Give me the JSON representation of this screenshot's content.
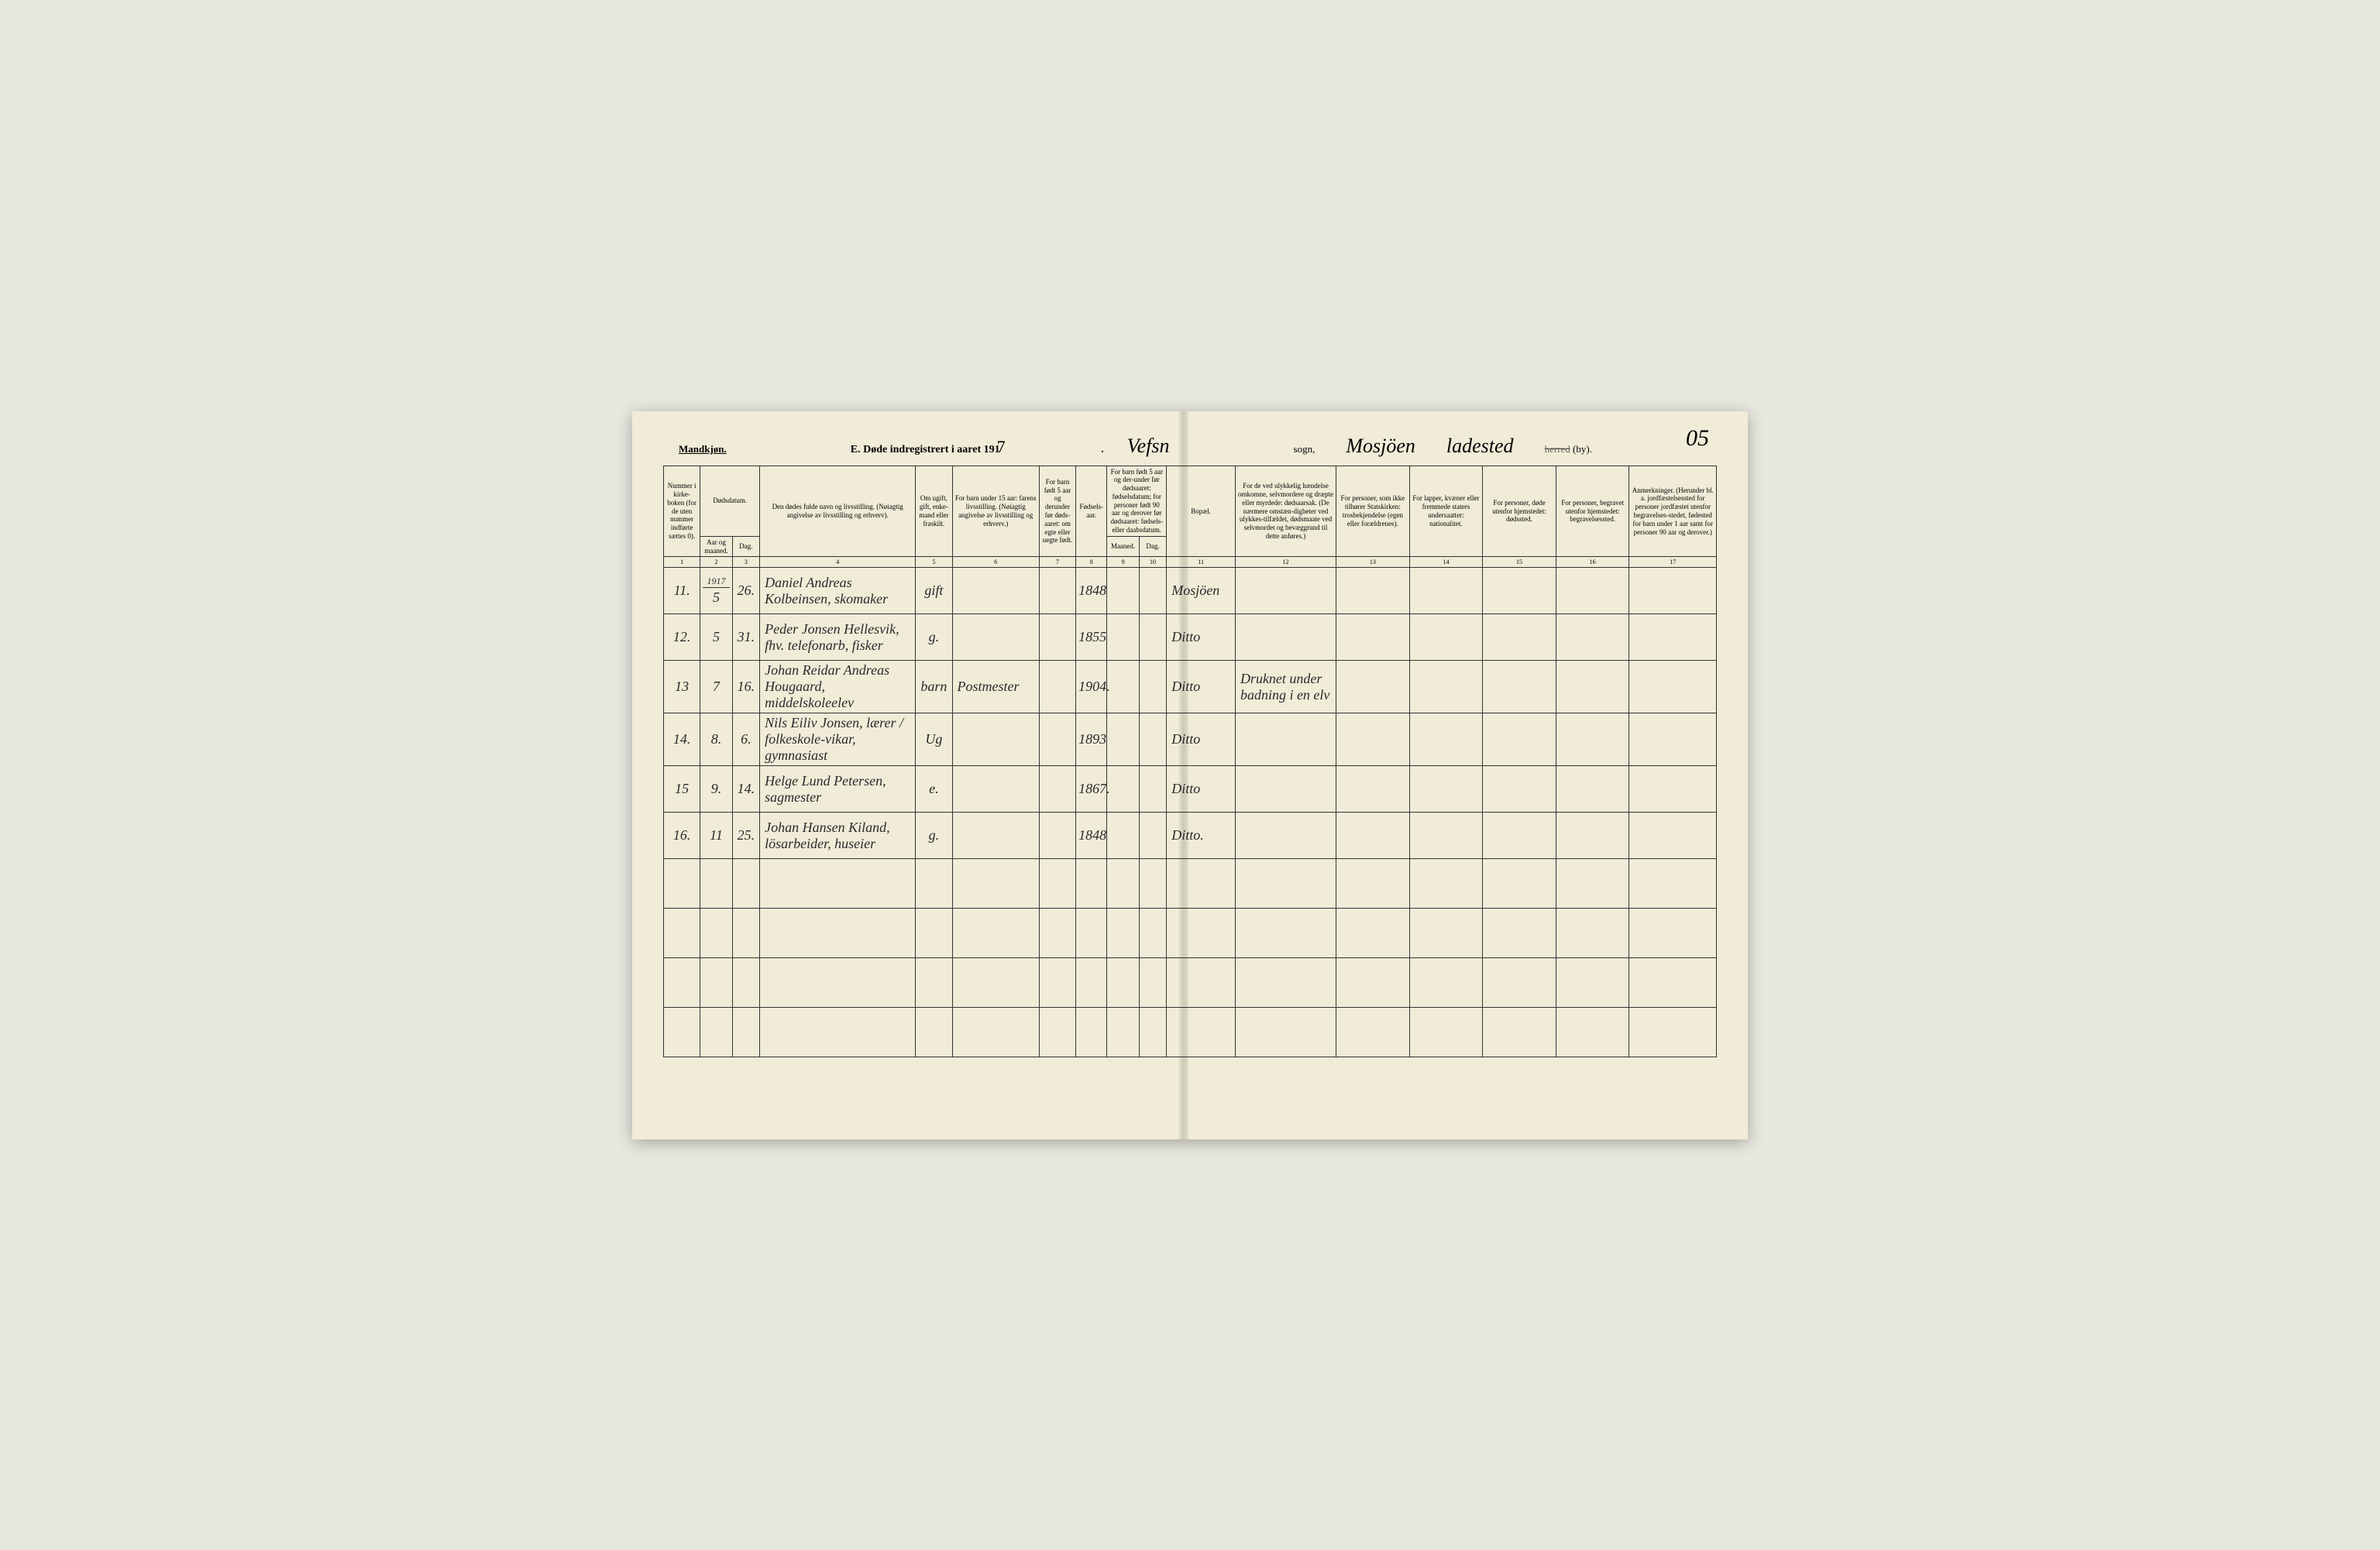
{
  "page_number": "05",
  "header": {
    "left_label": "Mandkjøn.",
    "title_prefix": "E.  Døde indregistrert i aaret 191",
    "year_suffix": "7",
    "sogn_hand": "Vefsn",
    "sogn_label": "sogn,",
    "herred_hand_1": "Mosjöen",
    "herred_hand_2": "ladested",
    "herred_label_strike": "herred",
    "herred_label_by": "(by)."
  },
  "columns": {
    "c1": "Nummer i kirke-boken (for de uten nummer indførte sættes 0).",
    "c2_group": "Dødsdatum.",
    "c2": "Aar og maaned.",
    "c3": "Dag.",
    "c4": "Den dødes fulde navn og livsstilling.\n(Nøiagtig angivelse av livsstilling og erhverv).",
    "c5": "Om ugift, gift, enke-mand eller fraskilt.",
    "c6": "For barn under 15 aar:\nfarens livsstilling.\n(Nøiagtig angivelse av livsstilling og erhverv.)",
    "c7": "For barn født 5 aar og derunder før døds-aaret: om egte eller uegte født.",
    "c8": "Fødsels-aar.",
    "c9_10": "For barn født 5 aar og der-under før dødsaaret: fødselsdatum; for personer født 90 aar og derover før dødsaaret: fødsels- eller daabsdatum.",
    "c9": "Maaned.",
    "c10": "Dag.",
    "c11": "Bopæl.",
    "c12": "For de ved ulykkelig hændelse omkomne, selvmordere og dræpte eller myrdede: dødsaarsak. (De nærmere omstæn-digheter ved ulykkes-tilfældet, dødsmaate ved selvmordet og bevæggrund til dette anføres.)",
    "c13": "For personer, som ikke tilhører Statskirken: trosbekjendelse (egen eller forældrenes).",
    "c14": "For lapper, kvæner eller fremmede staters undersaatter: nationalitet.",
    "c15": "For personer, døde utenfor hjemstedet: dødssted.",
    "c16": "For personer, begravet utenfor hjemstedet: begravelsessted.",
    "c17": "Anmerkninger. (Herunder bl. a. jordfæstelsessted for personer jordfæstet utenfor begravelses-stedet, fødested for barn under 1 aar samt for personer 90 aar og derover.)"
  },
  "colnums": [
    "1",
    "2",
    "3",
    "4",
    "5",
    "6",
    "7",
    "8",
    "9",
    "10",
    "11",
    "12",
    "13",
    "14",
    "15",
    "16",
    "17"
  ],
  "rows": [
    {
      "num": "11.",
      "year_top": "1917",
      "month": "5",
      "day": "26.",
      "name": "Daniel Andreas Kolbeinsen, skomaker",
      "status": "gift",
      "father": "",
      "legit": "",
      "birth": "1848",
      "m": "",
      "d": "",
      "place": "Mosjöen",
      "cause": "",
      "c13": "",
      "c14": "",
      "c15": "",
      "c16": "",
      "c17": ""
    },
    {
      "num": "12.",
      "month": "5",
      "day": "31.",
      "name": "Peder Jonsen Hellesvik, fhv. telefonarb, fisker",
      "status": "g.",
      "father": "",
      "legit": "",
      "birth": "1855",
      "m": "",
      "d": "",
      "place": "Ditto",
      "cause": "",
      "c13": "",
      "c14": "",
      "c15": "",
      "c16": "",
      "c17": ""
    },
    {
      "num": "13",
      "month": "7",
      "day": "16.",
      "name": "Johan Reidar Andreas Hougaard, middelskoleelev",
      "status": "barn",
      "father": "Postmester",
      "legit": "",
      "birth": "1904.",
      "m": "",
      "d": "",
      "place": "Ditto",
      "cause": "Druknet under badning i en elv",
      "c13": "",
      "c14": "",
      "c15": "",
      "c16": "",
      "c17": ""
    },
    {
      "num": "14.",
      "month": "8.",
      "day": "6.",
      "name": "Nils Eiliv Jonsen, lærer / folkeskole-vikar, gymnasiast",
      "status": "Ug",
      "father": "",
      "legit": "",
      "birth": "1893",
      "m": "",
      "d": "",
      "place": "Ditto",
      "cause": "",
      "c13": "",
      "c14": "",
      "c15": "",
      "c16": "",
      "c17": ""
    },
    {
      "num": "15",
      "month": "9.",
      "day": "14.",
      "name": "Helge Lund Petersen, sagmester",
      "status": "e.",
      "father": "",
      "legit": "",
      "birth": "1867.",
      "m": "",
      "d": "",
      "place": "Ditto",
      "cause": "",
      "c13": "",
      "c14": "",
      "c15": "",
      "c16": "",
      "c17": ""
    },
    {
      "num": "16.",
      "month": "11",
      "day": "25.",
      "name": "Johan Hansen Kiland, lösarbeider, huseier",
      "status": "g.",
      "father": "",
      "legit": "",
      "birth": "1848",
      "m": "",
      "d": "",
      "place": "Ditto.",
      "cause": "",
      "c13": "",
      "c14": "",
      "c15": "",
      "c16": "",
      "c17": ""
    }
  ],
  "empty_rows": 4,
  "style": {
    "page_bg": "#f0ecd8",
    "ink": "#2a2a2a",
    "border": "#333333",
    "hand_font": "Brush Script MT, cursive",
    "print_font": "Georgia, Times New Roman, serif",
    "header_fontsize_pt": 11,
    "cell_hand_fontsize_pt": 14,
    "th_fontsize_pt": 7
  }
}
